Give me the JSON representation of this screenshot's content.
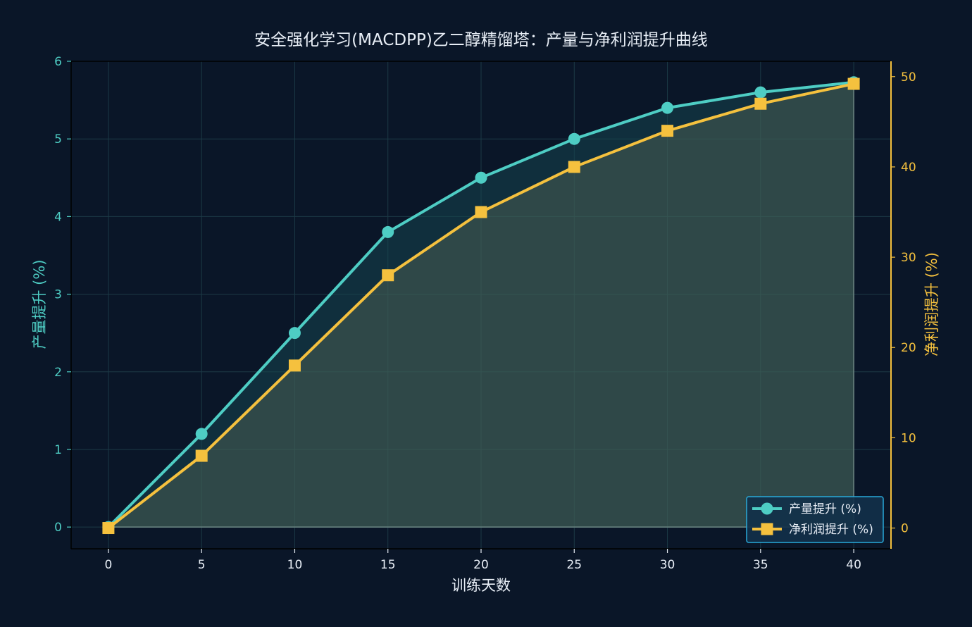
{
  "chart_data": {
    "type": "line",
    "title": "安全强化学习(MACDPP)乙二醇精馏塔：产量与净利润提升曲线",
    "xlabel": "训练天数",
    "ylabel_left": "产量提升 (%)",
    "ylabel_right": "净利润提升 (%)",
    "x": [
      0,
      5,
      10,
      15,
      20,
      25,
      30,
      35,
      40
    ],
    "xlim": [
      -2,
      42
    ],
    "xticks": [
      0,
      5,
      10,
      15,
      20,
      25,
      30,
      35,
      40
    ],
    "ylim_left": [
      -0.28,
      6.0
    ],
    "yticks_left": [
      0,
      1,
      2,
      3,
      4,
      5,
      6
    ],
    "ylim_right": [
      -2.3,
      51.7
    ],
    "yticks_right": [
      0,
      10,
      20,
      30,
      40,
      50
    ],
    "grid": true,
    "legend_position": "bottom-right",
    "series": [
      {
        "name": "产量提升 (%)",
        "axis": "left",
        "marker": "circle",
        "color": "#4ecdc4",
        "values": [
          0,
          1.2,
          2.5,
          3.8,
          4.5,
          5.0,
          5.4,
          5.6,
          5.73
        ]
      },
      {
        "name": "净利润提升 (%)",
        "axis": "right",
        "marker": "square",
        "color": "#f5c13e",
        "values": [
          0,
          8,
          18,
          28,
          35,
          40,
          44,
          47,
          49.2
        ]
      }
    ]
  },
  "colors": {
    "background": "#0a1628",
    "grid": "#1c3a46",
    "left_axis": "#4ecdc4",
    "right_axis": "#f5c13e",
    "text": "#e8eef6",
    "legend_border": "#29a9d9",
    "legend_bg": "#123049"
  }
}
